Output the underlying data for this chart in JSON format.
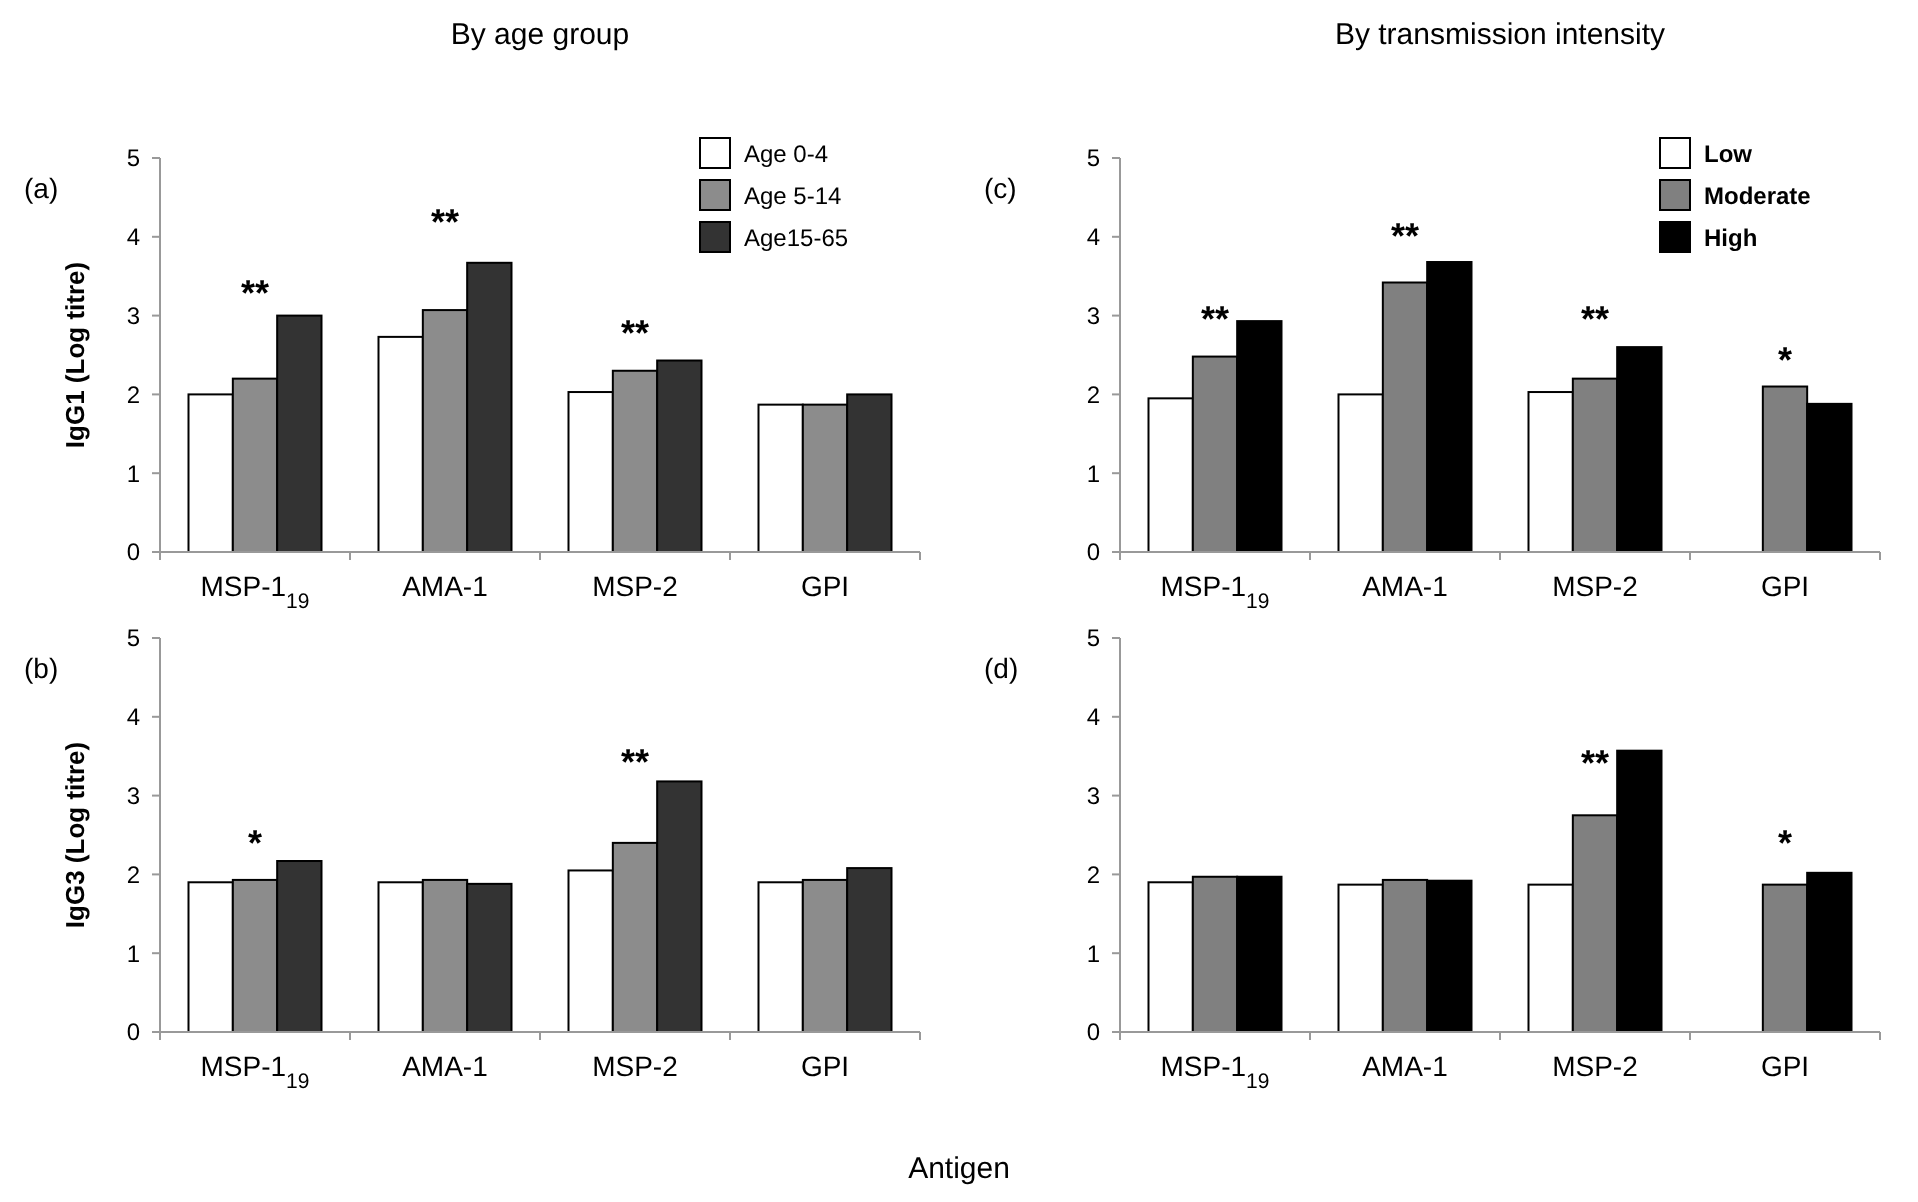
{
  "chart_data": [
    {
      "type": "bar",
      "title": "By age group",
      "ylabel": "IgG1 (Log titre)",
      "categories": [
        "MSP-1$_{19}$",
        "AMA-1",
        "MSP-2",
        "GPI"
      ],
      "ylim": [
        0,
        5
      ],
      "yticks": [
        0,
        1,
        2,
        3,
        4,
        5
      ],
      "legend": "top right",
      "series": [
        {
          "name": "Age 0-4",
          "color": "#ffffff",
          "values": [
            2.0,
            2.73,
            2.03,
            1.87
          ]
        },
        {
          "name": "Age 5-14",
          "color": "#8c8c8c",
          "values": [
            2.2,
            3.07,
            2.3,
            1.87
          ]
        },
        {
          "name": "Age15-65",
          "color": "#333333",
          "values": [
            3.0,
            3.67,
            2.43,
            2.0
          ]
        }
      ],
      "annotations": [
        "(a)",
        "**",
        "**",
        "**"
      ]
    },
    {
      "type": "bar",
      "title": "By transmission intensity",
      "categories": [
        "MSP-1$_{19}$",
        "AMA-1",
        "MSP-2",
        "GPI"
      ],
      "ylim": [
        0,
        5
      ],
      "yticks": [
        0,
        1,
        2,
        3,
        4,
        5
      ],
      "legend": "top right",
      "series": [
        {
          "name": "Low",
          "color": "#ffffff",
          "values": [
            1.95,
            2.0,
            2.03,
            null
          ]
        },
        {
          "name": "Moderate",
          "color": "#808080",
          "values": [
            2.48,
            3.42,
            2.2,
            2.1
          ]
        },
        {
          "name": "High",
          "color": "#000000",
          "values": [
            2.93,
            3.68,
            2.6,
            1.88
          ]
        }
      ],
      "annotations": [
        "(c)",
        "**",
        "**",
        "**",
        "*"
      ]
    },
    {
      "type": "bar",
      "ylabel": "IgG3 (Log titre)",
      "xlabel": "Antigen",
      "categories": [
        "MSP-1$_{19}$",
        "AMA-1",
        "MSP-2",
        "GPI"
      ],
      "ylim": [
        0,
        5
      ],
      "yticks": [
        0,
        1,
        2,
        3,
        4,
        5
      ],
      "series": [
        {
          "color": "#ffffff",
          "values": [
            1.9,
            1.9,
            2.05,
            1.9
          ]
        },
        {
          "color": "#8c8c8c",
          "values": [
            1.93,
            1.93,
            2.4,
            1.93
          ]
        },
        {
          "color": "#333333",
          "values": [
            2.17,
            1.88,
            3.18,
            2.08
          ]
        }
      ],
      "annotations": [
        "(b)",
        "*",
        "**"
      ]
    },
    {
      "type": "bar",
      "categories": [
        "MSP-1$_{19}$",
        "AMA-1",
        "MSP-2",
        "GPI"
      ],
      "ylim": [
        0,
        5
      ],
      "yticks": [
        0,
        1,
        2,
        3,
        4,
        5
      ],
      "series": [
        {
          "color": "#ffffff",
          "values": [
            1.9,
            1.87,
            1.87,
            null
          ]
        },
        {
          "color": "#808080",
          "values": [
            1.97,
            1.93,
            2.75,
            1.87
          ]
        },
        {
          "color": "#000000",
          "values": [
            1.97,
            1.92,
            3.57,
            2.02
          ]
        }
      ],
      "annotations": [
        "(d)",
        "**",
        "*"
      ]
    }
  ]
}
